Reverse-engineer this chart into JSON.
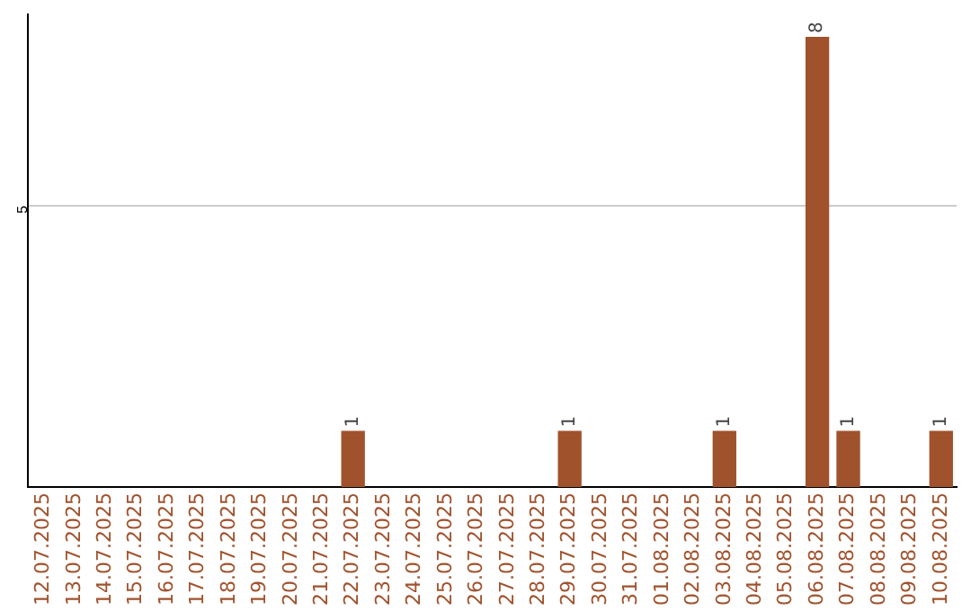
{
  "chart_data": {
    "type": "bar",
    "categories": [
      "12.07.2025",
      "13.07.2025",
      "14.07.2025",
      "15.07.2025",
      "16.07.2025",
      "17.07.2025",
      "18.07.2025",
      "19.07.2025",
      "20.07.2025",
      "21.07.2025",
      "22.07.2025",
      "23.07.2025",
      "24.07.2025",
      "25.07.2025",
      "26.07.2025",
      "27.07.2025",
      "28.07.2025",
      "29.07.2025",
      "30.07.2025",
      "31.07.2025",
      "01.08.2025",
      "02.08.2025",
      "03.08.2025",
      "04.08.2025",
      "05.08.2025",
      "06.08.2025",
      "07.08.2025",
      "08.08.2025",
      "09.08.2025",
      "10.08.2025"
    ],
    "values": [
      0,
      0,
      0,
      0,
      0,
      0,
      0,
      0,
      0,
      0,
      1,
      0,
      0,
      0,
      0,
      0,
      0,
      1,
      0,
      0,
      0,
      0,
      1,
      0,
      0,
      8,
      1,
      0,
      0,
      1
    ],
    "value_labels": [
      null,
      null,
      null,
      null,
      null,
      null,
      null,
      null,
      null,
      null,
      "1",
      null,
      null,
      null,
      null,
      null,
      null,
      "1",
      null,
      null,
      null,
      null,
      "1",
      null,
      null,
      "8",
      "1",
      null,
      null,
      "1"
    ],
    "color": "#a0522d",
    "ylim": [
      0,
      8.4
    ],
    "yticks": [
      5
    ],
    "grid": "y",
    "legend": false
  }
}
